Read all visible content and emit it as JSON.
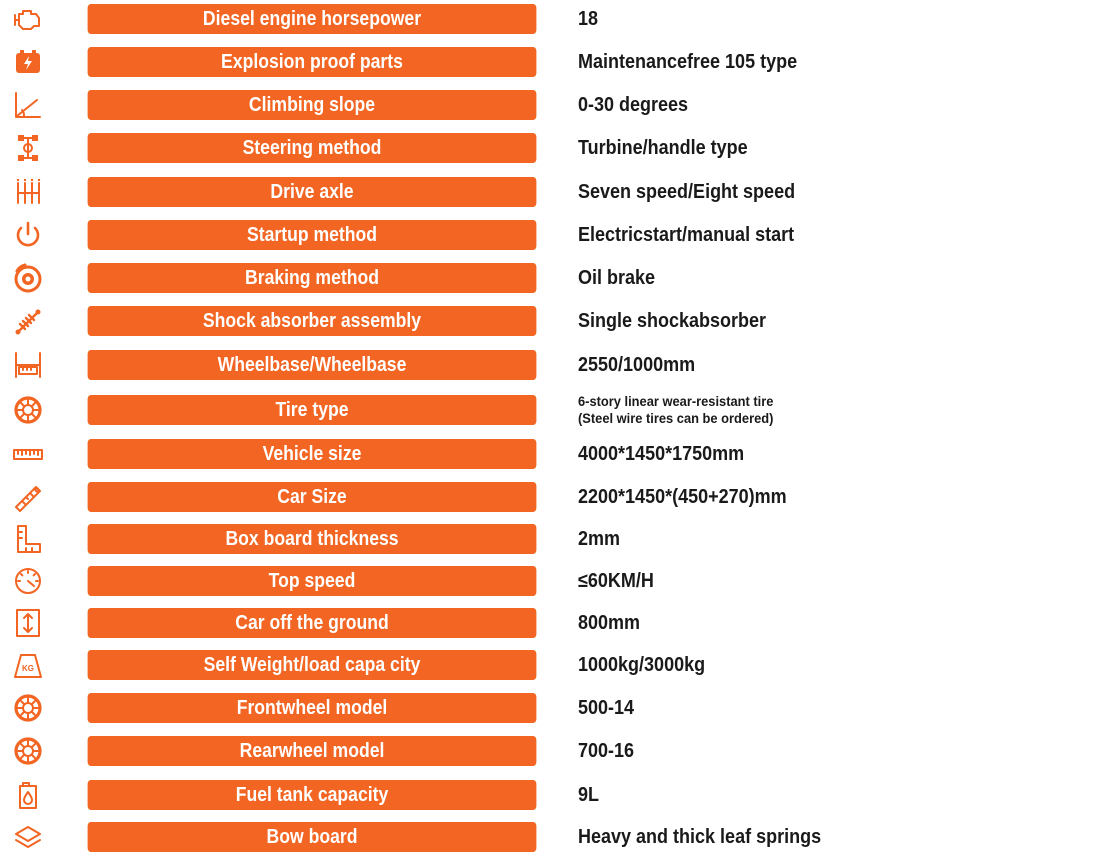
{
  "specs": [
    {
      "icon": "engine-icon",
      "label": "Diesel engine horsepower",
      "value": "18"
    },
    {
      "icon": "battery-icon",
      "label": "Explosion proof parts",
      "value": "Maintenancefree 105 type"
    },
    {
      "icon": "slope-icon",
      "label": "Climbing slope",
      "value": "0-30 degrees"
    },
    {
      "icon": "steering-icon",
      "label": "Steering method",
      "value": "Turbine/handle type"
    },
    {
      "icon": "gearbox-icon",
      "label": "Drive axle",
      "value": "Seven speed/Eight speed"
    },
    {
      "icon": "power-icon",
      "label": "Startup method",
      "value": "Electricstart/manual start"
    },
    {
      "icon": "brake-icon",
      "label": "Braking method",
      "value": "Oil brake"
    },
    {
      "icon": "shock-absorber-icon",
      "label": "Shock absorber assembly",
      "value": "Single shockabsorber"
    },
    {
      "icon": "wheelbase-icon",
      "label": "Wheelbase/Wheelbase",
      "value": "2550/1000mm"
    },
    {
      "icon": "tire-icon",
      "label": "Tire type",
      "value_line1": "6-story linear wear-resistant tire",
      "value_line2": "(Steel wire tires can be ordered)"
    },
    {
      "icon": "ruler-icon",
      "label": "Vehicle size",
      "value": "4000*1450*1750mm"
    },
    {
      "icon": "protractor-icon",
      "label": "Car Size",
      "value": "2200*1450*(450+270)mm"
    },
    {
      "icon": "thickness-icon",
      "label": "Box board thickness",
      "value": "2mm"
    },
    {
      "icon": "speedometer-icon",
      "label": "Top speed",
      "value": "≤60KM/H"
    },
    {
      "icon": "height-icon",
      "label": "Car off the ground",
      "value": "800mm"
    },
    {
      "icon": "weight-icon",
      "label": "Self  Weight/load capa city",
      "value": "1000kg/3000kg"
    },
    {
      "icon": "wheel-icon",
      "label": "Frontwheel model",
      "value": "500-14"
    },
    {
      "icon": "wheel-icon",
      "label": "Rearwheel model",
      "value": "700-16"
    },
    {
      "icon": "fuel-tank-icon",
      "label": "Fuel tank capacity",
      "value": "9L"
    },
    {
      "icon": "layers-icon",
      "label": "Bow board",
      "value": "Heavy and thick leaf springs"
    }
  ],
  "weight_icon_text": "KG"
}
